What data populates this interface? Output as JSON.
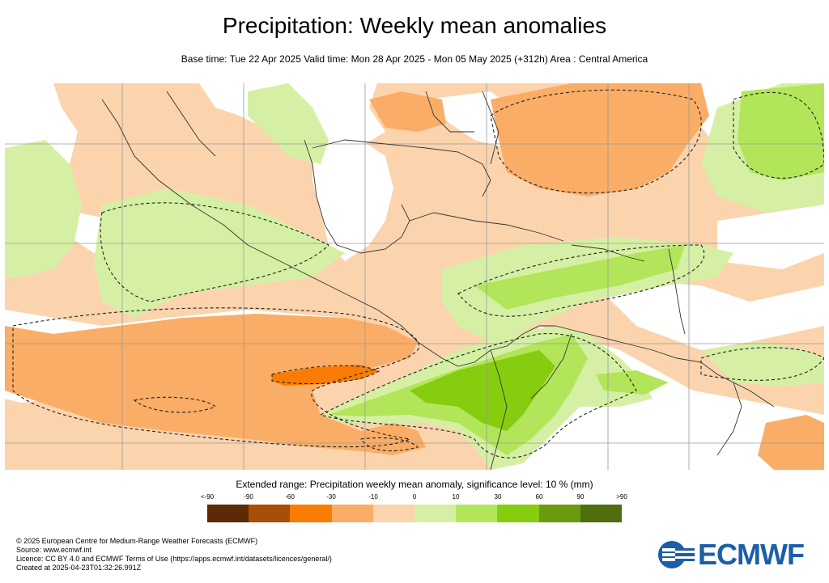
{
  "title": "Precipitation: Weekly mean anomalies",
  "subtitle": "Base time: Tue 22 Apr 2025 Valid time: Mon 28 Apr 2025 - Mon 05 May 2025 (+312h) Area : Central America",
  "legend": {
    "title": "Extended range: Precipitation weekly mean anomaly, significance level: 10 % (mm)",
    "labels": [
      "<-90",
      "-90",
      "-60",
      "-30",
      "-10",
      "0",
      "10",
      "30",
      "60",
      "90",
      ">90"
    ],
    "colors": [
      "#5c2a06",
      "#a84e06",
      "#fa7c05",
      "#faad66",
      "#fbd4ad",
      "#d5f0a4",
      "#b2e55a",
      "#86cc0f",
      "#6a9a0e",
      "#4f6f0e"
    ]
  },
  "footer": {
    "copyright": "© 2025 European Centre for Medium-Range Weather Forecasts (ECMWF)",
    "source": "Source: www.ecmwf.int",
    "licence": "Licence: CC BY 4.0 and ECMWF Terms of Use (https://apps.ecmwf.int/datasets/licences/general/)",
    "created": "Created at 2025-04-23T01:32:26.991Z"
  },
  "logo": {
    "text": "ECMWF",
    "color": "#1c5ea8",
    "icon": "ecmwf-logo-icon"
  }
}
